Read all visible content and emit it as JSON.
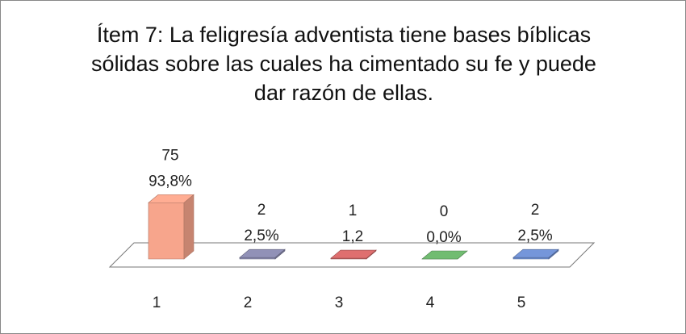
{
  "chart_data": {
    "type": "bar3d",
    "title": "Ítem 7: La feligresía adventista tiene bases bíblicas sólidas sobre las cuales ha cimentado su fe y puede dar razón de ellas.",
    "categories": [
      "1",
      "2",
      "3",
      "4",
      "5"
    ],
    "values": [
      75,
      2,
      1,
      0,
      2
    ],
    "percent_labels": [
      "93,8%",
      "2,5%",
      "1,2",
      "0,0%",
      "2,5%"
    ],
    "colors": [
      "#f7a58c",
      "#8a8aae",
      "#d46a6a",
      "#6cb36c",
      "#6f8fd0"
    ]
  }
}
